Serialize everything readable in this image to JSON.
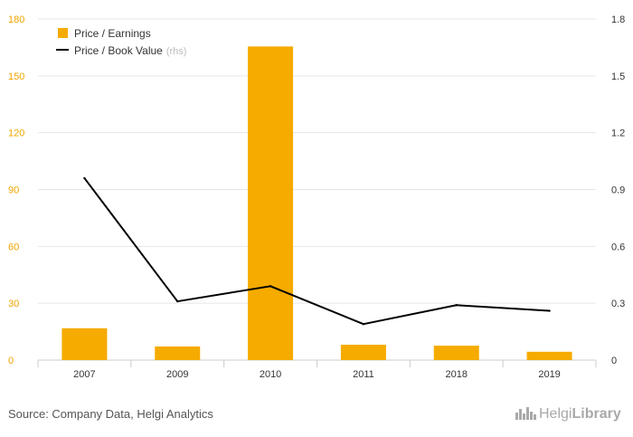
{
  "chart_data": {
    "type": "bar",
    "categories": [
      "2007",
      "2009",
      "2010",
      "2011",
      "2018",
      "2019"
    ],
    "series": [
      {
        "name": "Price / Earnings",
        "kind": "bar",
        "axis": "left",
        "color": "#f5ab00",
        "values": [
          16.8,
          7.2,
          165.5,
          8.1,
          7.6,
          4.4
        ]
      },
      {
        "name": "Price / Book Value",
        "name_suffix": "(rhs)",
        "kind": "line",
        "axis": "right",
        "color": "#000000",
        "values": [
          0.96,
          0.31,
          0.39,
          0.19,
          0.29,
          0.26
        ]
      }
    ],
    "y_left": {
      "ticks": [
        "0",
        "30",
        "60",
        "90",
        "120",
        "150",
        "180"
      ],
      "lim": [
        0,
        180
      ]
    },
    "y_right": {
      "ticks": [
        "0",
        "0.3",
        "0.6",
        "0.9",
        "1.2",
        "1.5",
        "1.8"
      ],
      "lim": [
        0,
        1.8
      ]
    },
    "grid": true,
    "legend": "top-left"
  },
  "footer": {
    "source": "Source: Company Data, Helgi Analytics",
    "brand_regular": "Helgi",
    "brand_bold": "Library"
  },
  "colors": {
    "bar": "#f5ab00",
    "line": "#000000",
    "left_tick": "#f0a500",
    "grid": "#e6e6e6"
  },
  "icons": {
    "brand_logo": "city-skyline-icon"
  }
}
